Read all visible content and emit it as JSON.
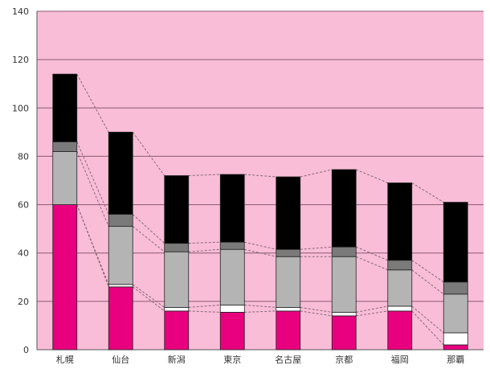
{
  "chart_data": {
    "type": "bar",
    "stacked": true,
    "categories": [
      "札幌",
      "仙台",
      "新潟",
      "東京",
      "名古屋",
      "京都",
      "福岡",
      "那覇"
    ],
    "series": [
      {
        "values": [
          60,
          26,
          16,
          15.5,
          16,
          14,
          16,
          2
        ],
        "color": "#e8007e"
      },
      {
        "values": [
          0,
          1,
          1.5,
          3,
          1.5,
          1.5,
          2,
          5
        ],
        "color": "#ffffff"
      },
      {
        "values": [
          22,
          24,
          23,
          23,
          21,
          23,
          15,
          16
        ],
        "color": "#b4b4b4"
      },
      {
        "values": [
          4,
          5,
          3.5,
          3,
          3,
          4,
          4,
          5
        ],
        "color": "#7a7a7a"
      },
      {
        "values": [
          28,
          34,
          28,
          28,
          30,
          32,
          32,
          33
        ],
        "color": "#000000"
      }
    ],
    "connector_lines": true,
    "ylim": [
      0,
      140
    ],
    "yticks": [
      "0",
      "20",
      "40",
      "60",
      "80",
      "100",
      "120",
      "140"
    ],
    "grid": true,
    "plot_background": "#f9bdd8",
    "gridline_color": "#8a5a70"
  }
}
